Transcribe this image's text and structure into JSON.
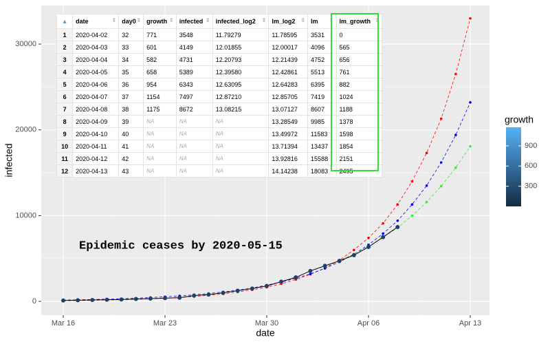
{
  "chart_data": {
    "type": "line",
    "xlabel": "date",
    "ylabel": "infected",
    "annotation": "Epidemic ceases by 2020-05-15",
    "xlim": [
      "Mar 16",
      "Apr 13"
    ],
    "xticks": [
      "Mar 16",
      "Mar 23",
      "Mar 30",
      "Apr 06",
      "Apr 13"
    ],
    "ylim": [
      -1600,
      34500
    ],
    "yticks": [
      0,
      10000,
      20000,
      30000
    ],
    "grid": true,
    "series": [
      {
        "color": "#1d4168",
        "line_color": "#000000",
        "line_style": "solid",
        "x": [
          "Mar 16",
          "Mar 17",
          "Mar 18",
          "Mar 19",
          "Mar 20",
          "Mar 21",
          "Mar 22",
          "Mar 23",
          "Mar 24",
          "Mar 25",
          "Mar 26",
          "Mar 27",
          "Mar 28",
          "Mar 29",
          "Mar 30",
          "Mar 31",
          "Apr 1",
          "Apr 2",
          "Apr 3",
          "Apr 4",
          "Apr 5",
          "Apr 6",
          "Apr 7",
          "Apr 8"
        ],
        "values": [
          100,
          130,
          160,
          190,
          220,
          280,
          330,
          380,
          430,
          680,
          800,
          1000,
          1250,
          1500,
          1800,
          2300,
          2800,
          3548,
          4149,
          4731,
          5389,
          6343,
          7497,
          8672
        ]
      },
      {
        "color": "#ff0000",
        "line_color": "#ff0000",
        "line_style": "dashed",
        "x": [
          "Mar 16",
          "Mar 17",
          "Mar 18",
          "Mar 19",
          "Mar 20",
          "Mar 21",
          "Mar 22",
          "Mar 23",
          "Mar 24",
          "Mar 25",
          "Mar 26",
          "Mar 27",
          "Mar 28",
          "Mar 29",
          "Mar 30",
          "Mar 31",
          "Apr 1",
          "Apr 2",
          "Apr 3",
          "Apr 4",
          "Apr 5",
          "Apr 6",
          "Apr 7",
          "Apr 8",
          "Apr 9",
          "Apr 10",
          "Apr 11",
          "Apr 12",
          "Apr 13"
        ],
        "values": [
          80,
          100,
          130,
          160,
          195,
          240,
          300,
          370,
          460,
          570,
          710,
          880,
          1100,
          1350,
          1650,
          2050,
          2550,
          3150,
          3900,
          4800,
          6000,
          7400,
          9100,
          11300,
          14000,
          17300,
          21300,
          26500,
          33000
        ]
      },
      {
        "color": "#0000ff",
        "line_color": "#0000ff",
        "line_style": "dashed",
        "x": [
          "Mar 16",
          "Mar 17",
          "Mar 18",
          "Mar 19",
          "Mar 20",
          "Mar 21",
          "Mar 22",
          "Mar 23",
          "Mar 24",
          "Mar 25",
          "Mar 26",
          "Mar 27",
          "Mar 28",
          "Mar 29",
          "Mar 30",
          "Mar 31",
          "Apr 1",
          "Apr 2",
          "Apr 3",
          "Apr 4",
          "Apr 5",
          "Apr 6",
          "Apr 7",
          "Apr 8",
          "Apr 9",
          "Apr 10",
          "Apr 11",
          "Apr 12",
          "Apr 13"
        ],
        "values": [
          150,
          180,
          220,
          260,
          310,
          370,
          450,
          540,
          640,
          770,
          920,
          1100,
          1300,
          1550,
          1900,
          2250,
          2700,
          3200,
          3850,
          4600,
          5500,
          6600,
          7900,
          9400,
          11300,
          13500,
          16200,
          19400,
          23200
        ]
      },
      {
        "color": "#33ee33",
        "line_color": "#33ee33",
        "line_style": "dashed",
        "x": [
          "Apr 2",
          "Apr 3",
          "Apr 4",
          "Apr 5",
          "Apr 6",
          "Apr 7",
          "Apr 8",
          "Apr 9",
          "Apr 10",
          "Apr 11",
          "Apr 12",
          "Apr 13"
        ],
        "values": [
          3531,
          4096,
          4752,
          5513,
          6395,
          7419,
          8607,
          9985,
          11583,
          13437,
          15588,
          18083
        ]
      }
    ],
    "colorbar": {
      "title": "growth",
      "lim": [
        0,
        1175
      ],
      "ticks": [
        300,
        600,
        900
      ],
      "colors": [
        "#132b43",
        "#56b1f7"
      ]
    }
  },
  "table": {
    "columns": [
      "date",
      "day0",
      "growth",
      "infected",
      "infected_log2",
      "lm_log2",
      "lm",
      "lm_growth"
    ],
    "highlight_column": 7,
    "rows": [
      {
        "n": 1,
        "cells": [
          "2020-04-02",
          "32",
          "771",
          "3548",
          "11.79279",
          "11.78595",
          "3531",
          "0"
        ]
      },
      {
        "n": 2,
        "cells": [
          "2020-04-03",
          "33",
          "601",
          "4149",
          "12.01855",
          "12.00017",
          "4096",
          "565"
        ]
      },
      {
        "n": 3,
        "cells": [
          "2020-04-04",
          "34",
          "582",
          "4731",
          "12.20793",
          "12.21439",
          "4752",
          "656"
        ]
      },
      {
        "n": 4,
        "cells": [
          "2020-04-05",
          "35",
          "658",
          "5389",
          "12.39580",
          "12.42861",
          "5513",
          "761"
        ]
      },
      {
        "n": 5,
        "cells": [
          "2020-04-06",
          "36",
          "954",
          "6343",
          "12.63095",
          "12.64283",
          "6395",
          "882"
        ]
      },
      {
        "n": 6,
        "cells": [
          "2020-04-07",
          "37",
          "1154",
          "7497",
          "12.87210",
          "12.85705",
          "7419",
          "1024"
        ]
      },
      {
        "n": 7,
        "cells": [
          "2020-04-08",
          "38",
          "1175",
          "8672",
          "13.08215",
          "13.07127",
          "8607",
          "1188"
        ]
      },
      {
        "n": 8,
        "cells": [
          "2020-04-09",
          "39",
          "NA",
          "NA",
          "NA",
          "13.28549",
          "9985",
          "1378"
        ]
      },
      {
        "n": 9,
        "cells": [
          "2020-04-10",
          "40",
          "NA",
          "NA",
          "NA",
          "13.49972",
          "11583",
          "1598"
        ]
      },
      {
        "n": 10,
        "cells": [
          "2020-04-11",
          "41",
          "NA",
          "NA",
          "NA",
          "13.71394",
          "13437",
          "1854"
        ]
      },
      {
        "n": 11,
        "cells": [
          "2020-04-12",
          "42",
          "NA",
          "NA",
          "NA",
          "13.92816",
          "15588",
          "2151"
        ]
      },
      {
        "n": 12,
        "cells": [
          "2020-04-13",
          "43",
          "NA",
          "NA",
          "NA",
          "14.14238",
          "18083",
          "2495"
        ]
      }
    ]
  }
}
